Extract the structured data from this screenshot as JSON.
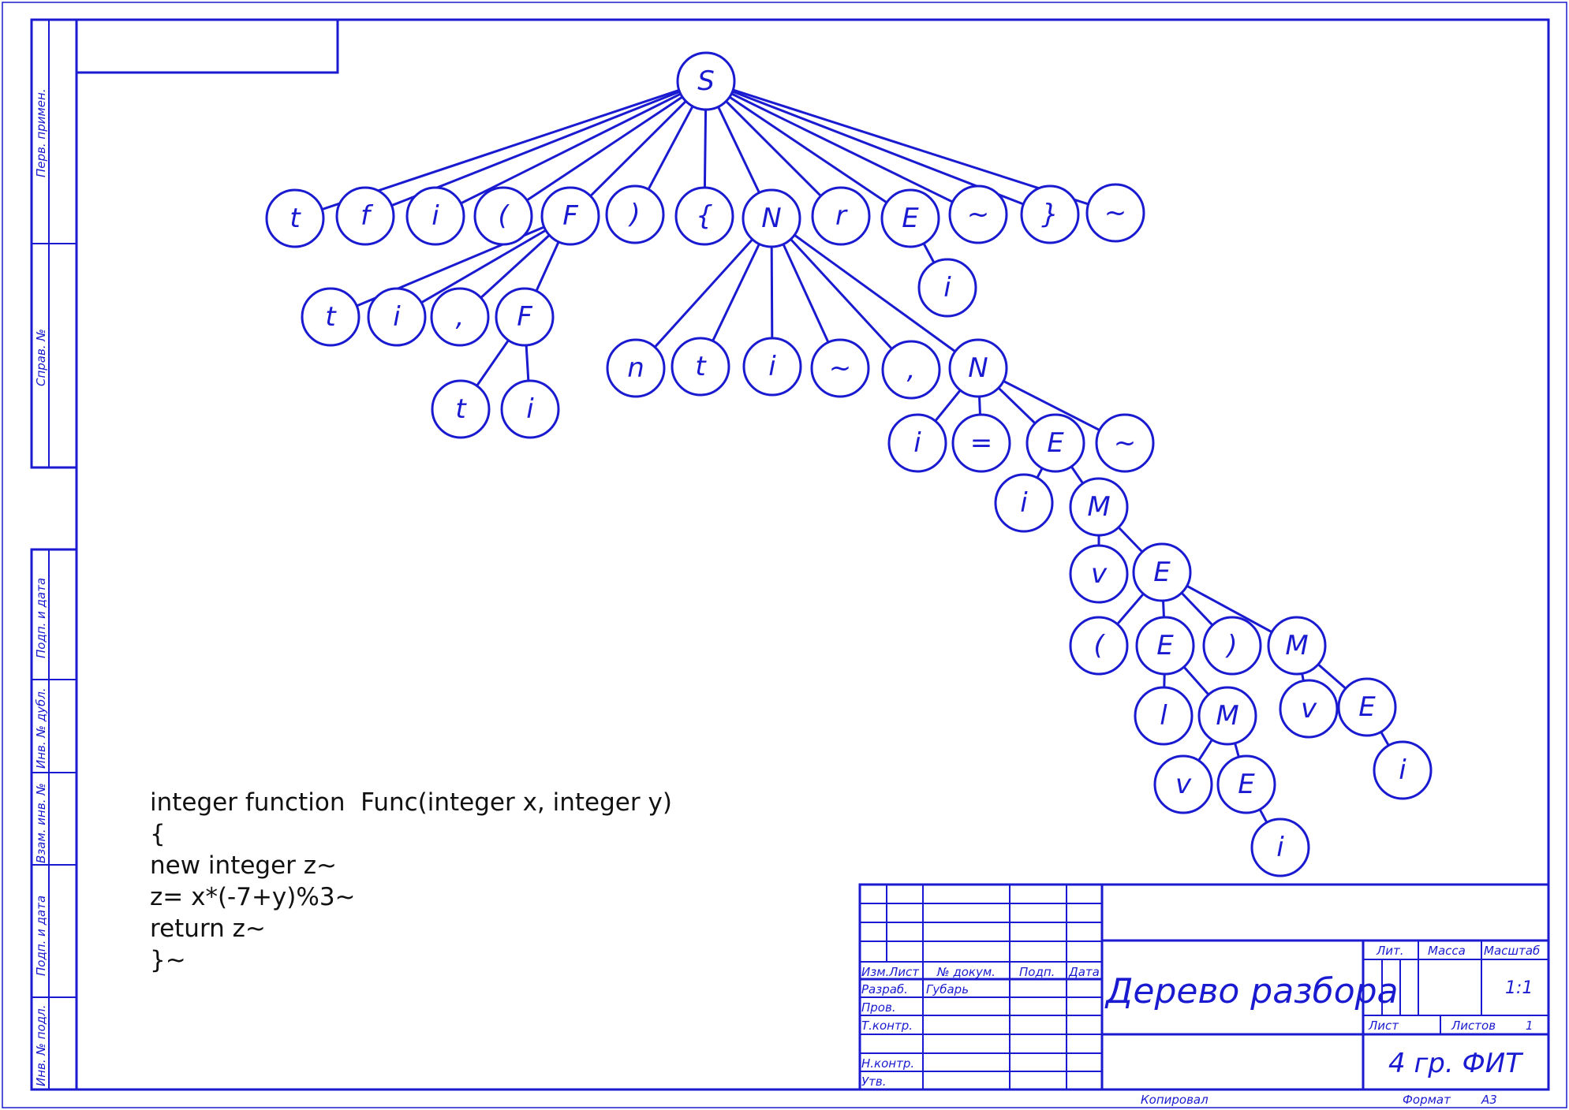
{
  "colors": {
    "line": "#1a1ad0",
    "text": "#111111"
  },
  "side_labels": [
    "Перв. примен.",
    "Справ. №",
    "Подп. и дата",
    "Инв. № дубл.",
    "Взам. инв. №",
    "Подп. и дата",
    "Инв. № подл."
  ],
  "tree": {
    "nodes": [
      {
        "id": "S",
        "label": "S"
      },
      {
        "id": "t1",
        "label": "t"
      },
      {
        "id": "f1",
        "label": "f"
      },
      {
        "id": "i1",
        "label": "i"
      },
      {
        "id": "lp1",
        "label": "("
      },
      {
        "id": "F1",
        "label": "F"
      },
      {
        "id": "rp1",
        "label": ")"
      },
      {
        "id": "lb1",
        "label": "{"
      },
      {
        "id": "N1",
        "label": "N"
      },
      {
        "id": "r1",
        "label": "r"
      },
      {
        "id": "E1",
        "label": "E"
      },
      {
        "id": "tl1",
        "label": "~"
      },
      {
        "id": "rb1",
        "label": "}"
      },
      {
        "id": "tl2",
        "label": "~"
      },
      {
        "id": "iE1",
        "label": "i"
      },
      {
        "id": "t2",
        "label": "t"
      },
      {
        "id": "i2",
        "label": "i"
      },
      {
        "id": "c1",
        "label": ","
      },
      {
        "id": "F2",
        "label": "F"
      },
      {
        "id": "t3",
        "label": "t"
      },
      {
        "id": "i3",
        "label": "i"
      },
      {
        "id": "n1",
        "label": "n"
      },
      {
        "id": "t4",
        "label": "t"
      },
      {
        "id": "i4",
        "label": "i"
      },
      {
        "id": "tl3",
        "label": "~"
      },
      {
        "id": "c2",
        "label": ","
      },
      {
        "id": "N2",
        "label": "N"
      },
      {
        "id": "i5",
        "label": "i"
      },
      {
        "id": "eq",
        "label": "="
      },
      {
        "id": "E2",
        "label": "E"
      },
      {
        "id": "tl4",
        "label": "~"
      },
      {
        "id": "i6",
        "label": "i"
      },
      {
        "id": "M1",
        "label": "M"
      },
      {
        "id": "v1",
        "label": "v"
      },
      {
        "id": "E3",
        "label": "E"
      },
      {
        "id": "lp2",
        "label": "("
      },
      {
        "id": "E4",
        "label": "E"
      },
      {
        "id": "rp2",
        "label": ")"
      },
      {
        "id": "M2",
        "label": "M"
      },
      {
        "id": "l1",
        "label": "l"
      },
      {
        "id": "M3",
        "label": "M"
      },
      {
        "id": "v2",
        "label": "v"
      },
      {
        "id": "E5",
        "label": "E"
      },
      {
        "id": "v3",
        "label": "v"
      },
      {
        "id": "E6",
        "label": "E"
      },
      {
        "id": "i7",
        "label": "i"
      },
      {
        "id": "i8",
        "label": "i"
      }
    ],
    "edges": [
      [
        "S",
        "t1"
      ],
      [
        "S",
        "f1"
      ],
      [
        "S",
        "i1"
      ],
      [
        "S",
        "lp1"
      ],
      [
        "S",
        "F1"
      ],
      [
        "S",
        "rp1"
      ],
      [
        "S",
        "lb1"
      ],
      [
        "S",
        "N1"
      ],
      [
        "S",
        "r1"
      ],
      [
        "S",
        "E1"
      ],
      [
        "S",
        "tl1"
      ],
      [
        "S",
        "rb1"
      ],
      [
        "S",
        "tl2"
      ],
      [
        "E1",
        "iE1"
      ],
      [
        "F1",
        "t2"
      ],
      [
        "F1",
        "i2"
      ],
      [
        "F1",
        "c1"
      ],
      [
        "F1",
        "F2"
      ],
      [
        "F2",
        "t3"
      ],
      [
        "F2",
        "i3"
      ],
      [
        "N1",
        "n1"
      ],
      [
        "N1",
        "t4"
      ],
      [
        "N1",
        "i4"
      ],
      [
        "N1",
        "tl3"
      ],
      [
        "N1",
        "c2"
      ],
      [
        "N1",
        "N2"
      ],
      [
        "N2",
        "i5"
      ],
      [
        "N2",
        "eq"
      ],
      [
        "N2",
        "E2"
      ],
      [
        "N2",
        "tl4"
      ],
      [
        "E2",
        "i6"
      ],
      [
        "E2",
        "M1"
      ],
      [
        "M1",
        "v1"
      ],
      [
        "M1",
        "E3"
      ],
      [
        "E3",
        "lp2"
      ],
      [
        "E3",
        "E4"
      ],
      [
        "E3",
        "rp2"
      ],
      [
        "E3",
        "M2"
      ],
      [
        "E4",
        "l1"
      ],
      [
        "E4",
        "M3"
      ],
      [
        "M3",
        "v2"
      ],
      [
        "M3",
        "E5"
      ],
      [
        "E5",
        "i7"
      ],
      [
        "M2",
        "v3"
      ],
      [
        "M2",
        "E6"
      ],
      [
        "E6",
        "i8"
      ]
    ]
  },
  "code_lines": [
    "integer function  Func(integer x, integer y)",
    "{",
    "new integer z~",
    "z= x*(-7+y)%3~",
    "return z~",
    "}~"
  ],
  "title_block": {
    "col_izm": "Изм.",
    "col_list": "Лист",
    "col_doc": "№ докум.",
    "col_podp": "Подп.",
    "col_data": "Дата",
    "row_razrab": "Разраб.",
    "author": "Губарь",
    "row_prov": "Пров.",
    "row_tkontr": "Т.контр.",
    "row_nkontr": "Н.контр.",
    "row_utv": "Утв.",
    "title": "Дерево разбора",
    "lit": "Лит.",
    "massa": "Масса",
    "masshtab": "Масштаб",
    "scale": "1:1",
    "list": "Лист",
    "listov": "Листов",
    "listov_value": "1",
    "group": "4 гр. ФИТ",
    "kopiroval": "Копировал",
    "format": "Формат",
    "format_value": "А3"
  }
}
